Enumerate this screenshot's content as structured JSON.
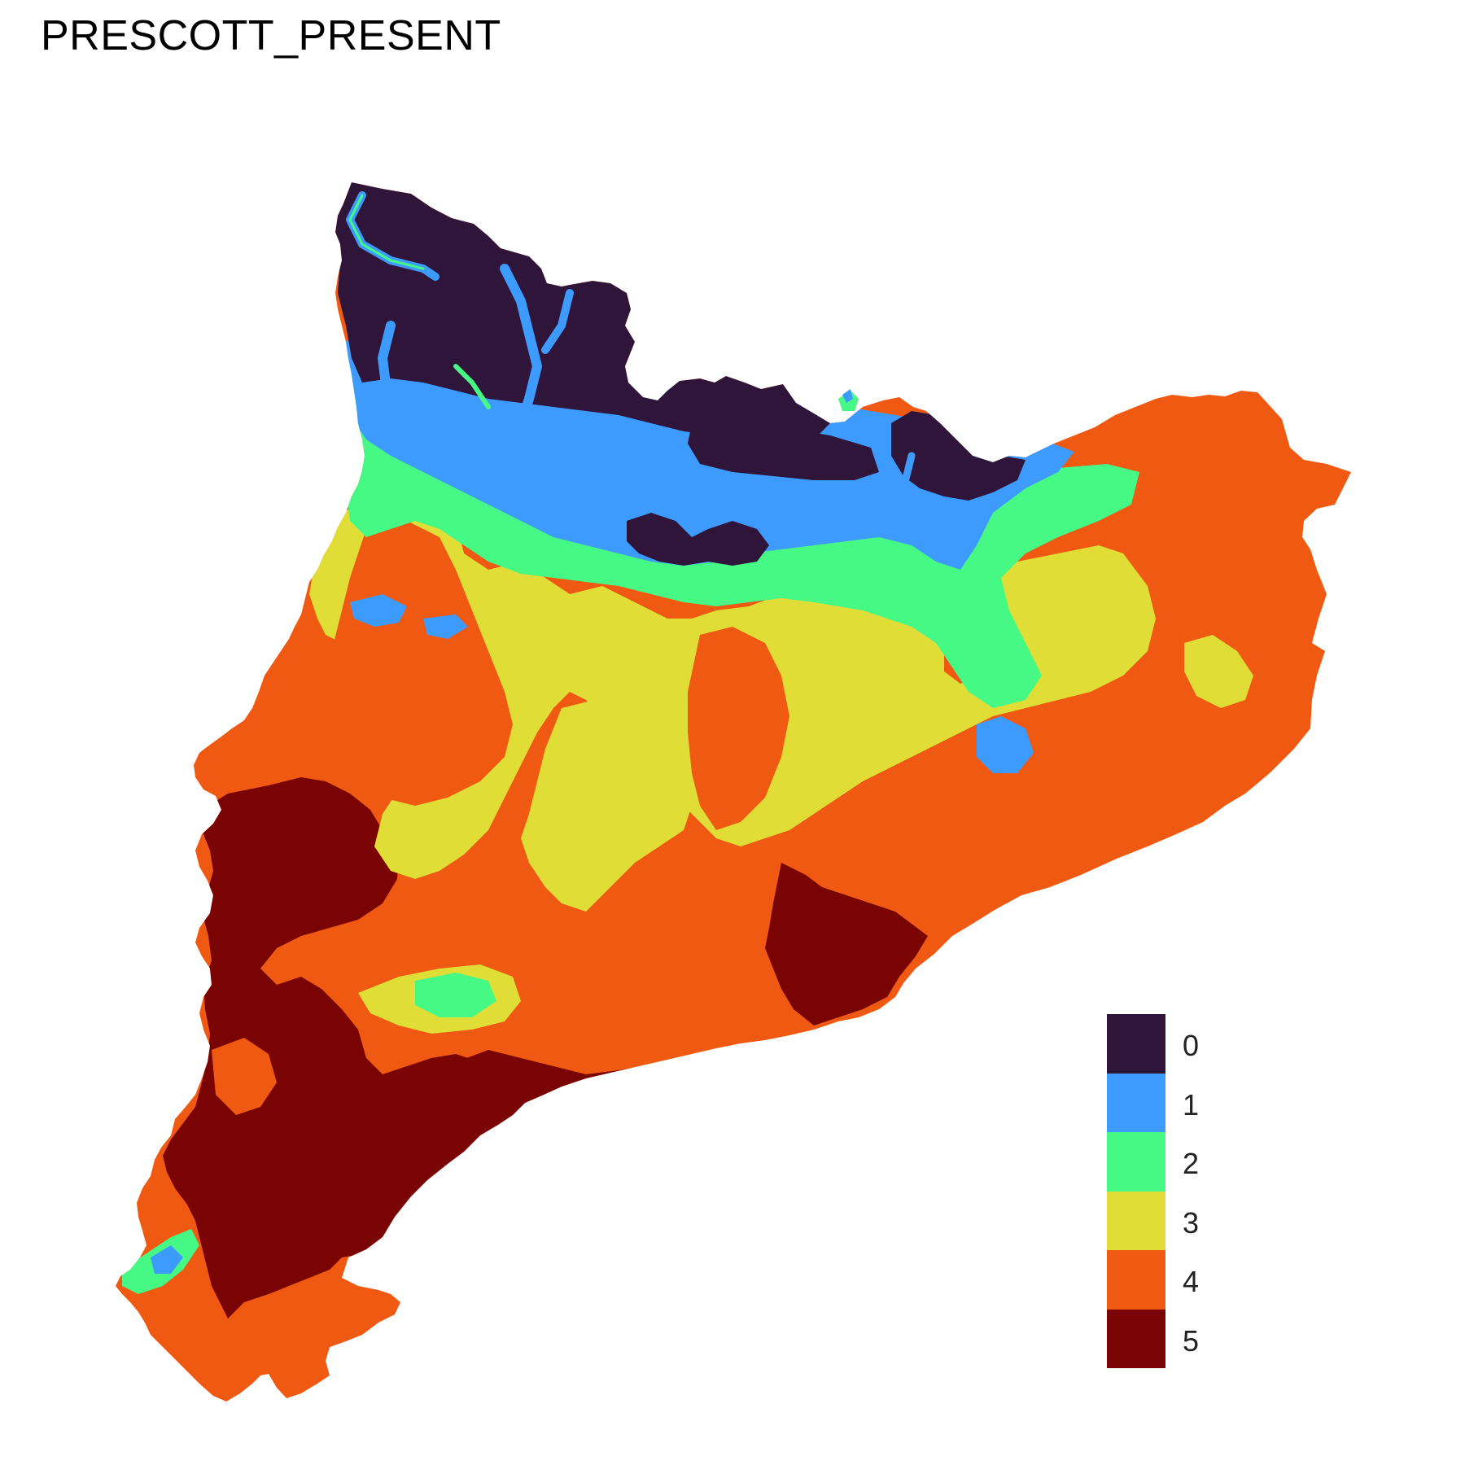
{
  "title": "PRESCOTT_PRESENT",
  "legend": [
    {
      "label": "0",
      "color": "#2E1539"
    },
    {
      "label": "1",
      "color": "#3E9BFE"
    },
    {
      "label": "2",
      "color": "#46F884"
    },
    {
      "label": "3",
      "color": "#E1DD37"
    },
    {
      "label": "4",
      "color": "#EF5911"
    },
    {
      "label": "5",
      "color": "#7A0403"
    }
  ],
  "colors": {
    "class0": "#2E1539",
    "class1": "#3E9BFE",
    "class2": "#46F884",
    "class3": "#E1DD37",
    "class4": "#EF5911",
    "class5": "#7A0403",
    "background": "#FFFFFF"
  }
}
